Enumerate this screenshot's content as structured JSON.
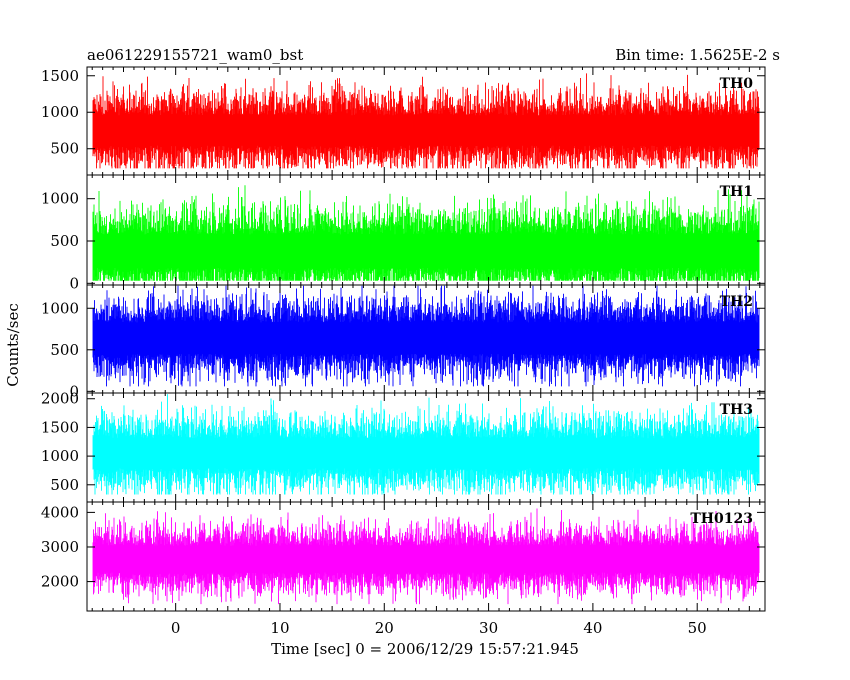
{
  "header": {
    "title": "ae061229155721_wam0_bst",
    "bin_time": "Bin time: 1.5625E-2 s"
  },
  "axes": {
    "ylabel": "Counts/sec",
    "xlabel": "Time [sec] 0 = 2006/12/29 15:57:21.945"
  },
  "chart_data": {
    "type": "line",
    "render": "binned light curve drawn as dense vertical spikes",
    "x_range": [
      -8.5,
      56.5
    ],
    "data_x_range": [
      -8.0,
      56.0
    ],
    "bin_time_s": 0.015625,
    "x_ticks": [
      0,
      10,
      20,
      30,
      40,
      50
    ],
    "panels": [
      {
        "name": "TH0",
        "color": "#ff0000",
        "ylim": [
          140,
          1620
        ],
        "y_ticks": [
          500,
          1000,
          1500
        ],
        "mean": 750,
        "spread": 230,
        "min": 230,
        "max": 1600
      },
      {
        "name": "TH1",
        "color": "#00ff00",
        "ylim": [
          -20,
          1280
        ],
        "y_ticks": [
          0,
          500,
          1000
        ],
        "mean": 380,
        "spread": 220,
        "min": 30,
        "max": 1270
      },
      {
        "name": "TH2",
        "color": "#0000ff",
        "ylim": [
          -20,
          1280
        ],
        "y_ticks": [
          0,
          500,
          1000
        ],
        "mean": 640,
        "spread": 210,
        "min": 60,
        "max": 1270
      },
      {
        "name": "TH3",
        "color": "#00ffff",
        "ylim": [
          200,
          2100
        ],
        "y_ticks": [
          500,
          1000,
          1500,
          2000
        ],
        "mean": 1050,
        "spread": 290,
        "min": 330,
        "max": 2080
      },
      {
        "name": "TH0123",
        "color": "#ff00ff",
        "ylim": [
          1150,
          4300
        ],
        "y_ticks": [
          2000,
          3000,
          4000
        ],
        "mean": 2650,
        "spread": 430,
        "min": 1350,
        "max": 4200
      }
    ]
  }
}
